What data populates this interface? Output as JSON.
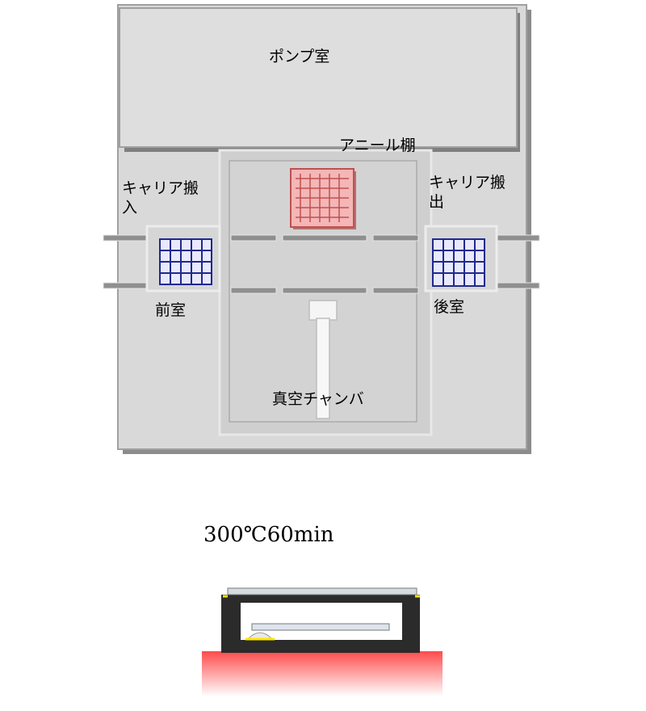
{
  "diagram": {
    "pump_room": "ポンプ室",
    "anneal_shelf": "アニール棚",
    "carrier_in": "キャリア搬入",
    "carrier_out": "キャリア搬出",
    "front_room": "前室",
    "rear_room": "後室",
    "vacuum_chamber": "真空チャンバ",
    "condition": "300℃60min"
  },
  "colors": {
    "panel_bg": "#d9d9d9",
    "panel_border": "#a6a6a6",
    "shadow": "#8c8c8c",
    "shelf_grid": "#f4b6b6",
    "shelf_frame": "#c05050",
    "carrier_grid": "#1f2a8c",
    "heater_top": "#ff3b3b",
    "heater_bottom": "#ffffff",
    "holder": "#2b2b2b",
    "accent": "#ffe600"
  }
}
